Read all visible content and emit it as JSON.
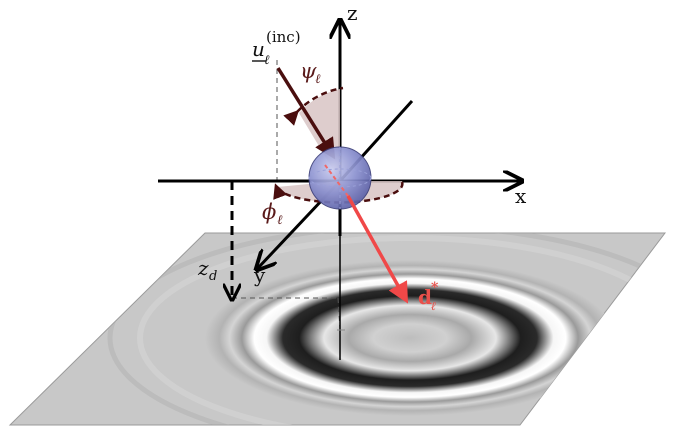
{
  "axes": {
    "x": "x",
    "y": "y",
    "z": "z"
  },
  "labels": {
    "u_main": "u",
    "u_sub": "ℓ",
    "u_sup": "(inc)",
    "psi_main": "ψ",
    "psi_sub": "ℓ",
    "phi_main": "ϕ",
    "phi_sub": "ℓ",
    "zd_main": "z",
    "zd_sub": "d",
    "d_main": "d",
    "d_sub": "ℓ",
    "d_sup": "*"
  },
  "colors": {
    "axis": "#000000",
    "incident_arrow": "#4a0e0e",
    "angle_fill": "#d8c4c4",
    "angle_stroke": "#4a0e0e",
    "sphere": "#7f86c8",
    "scatter_arrow": "#f04848",
    "plane_base": "#c8c8c8"
  }
}
